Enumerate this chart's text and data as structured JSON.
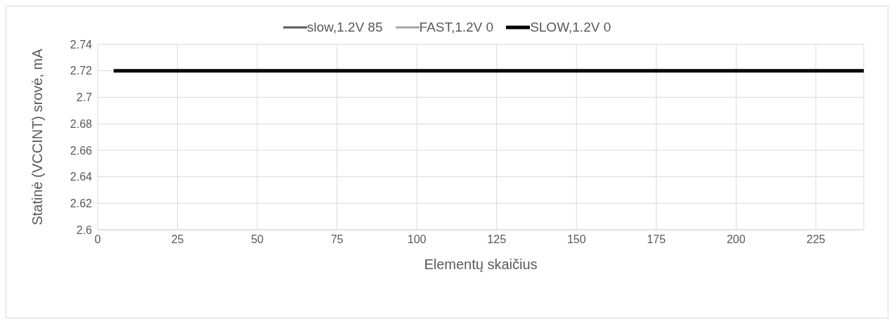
{
  "chart_data": {
    "type": "line",
    "xlabel": "Elementų skaičius",
    "ylabel": "Statinė (VCCINT) srovė, mA",
    "x": [
      5,
      240
    ],
    "series": [
      {
        "name": "slow,1.2V 85",
        "color": "#595959",
        "values": [
          null,
          null
        ]
      },
      {
        "name": "FAST,1.2V 0",
        "color": "#a5a5a5",
        "values": [
          null,
          null
        ]
      },
      {
        "name": "SLOW,1.2V 0",
        "color": "#000000",
        "values": [
          2.72,
          2.72
        ]
      }
    ],
    "xlim": [
      0,
      240
    ],
    "xticks": [
      0,
      25,
      50,
      75,
      100,
      125,
      150,
      175,
      200,
      225
    ],
    "ylim": [
      2.6,
      2.74
    ],
    "yticks": [
      2.6,
      2.62,
      2.64,
      2.66,
      2.68,
      2.7,
      2.72,
      2.74
    ],
    "grid": true,
    "legend": "top",
    "marker": "none",
    "line_style": "solid"
  }
}
